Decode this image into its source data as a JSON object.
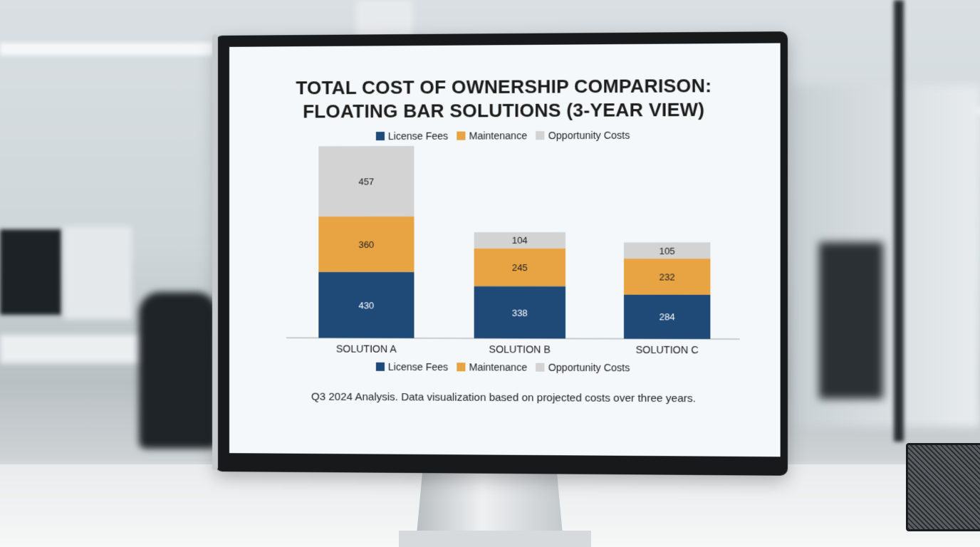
{
  "chart_data": {
    "type": "bar",
    "stacked": true,
    "title_line1": "TOTAL COST OF OWNERSHIP COMPARISON:",
    "title_line2": "FLOATING BAR SOLUTIONS (3-YEAR VIEW)",
    "categories": [
      "SOLUTION A",
      "SOLUTION B",
      "SOLUTION C"
    ],
    "series": [
      {
        "name": "License Fees",
        "values": [
          430,
          338,
          284
        ],
        "color": "#1f4a78"
      },
      {
        "name": "Maintenance",
        "values": [
          360,
          245,
          232
        ],
        "color": "#e8a443"
      },
      {
        "name": "Opportunity Costs",
        "values": [
          457,
          104,
          105
        ],
        "color": "#d3d3d3"
      }
    ],
    "legend_placement": "top and bottom",
    "grid": false,
    "footnote": "Q3 2024 Analysis. Data visualization based on projected costs over three years."
  }
}
